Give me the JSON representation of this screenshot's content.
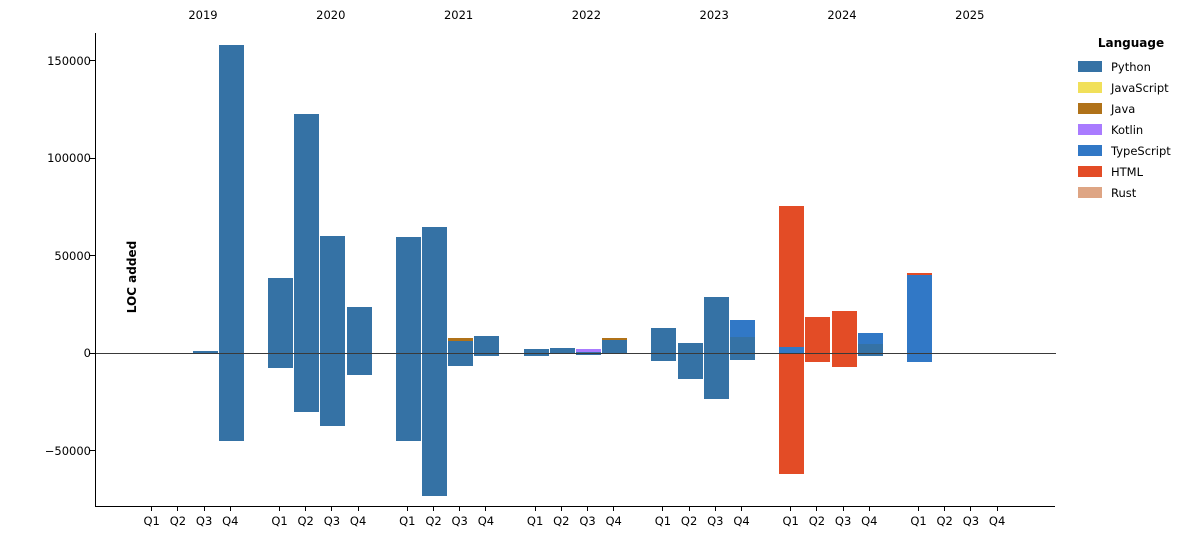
{
  "chart": {
    "ylabel": "LOC added",
    "legend_title": "Language"
  },
  "chart_data": {
    "type": "bar",
    "stacked": true,
    "orientation": "vertical",
    "title": "",
    "xlabel": "",
    "ylabel": "LOC added",
    "grid": false,
    "legend_title": "Language",
    "legend_position": "outside-upper-right",
    "ylim": [
      -78000,
      163000
    ],
    "yticks": [
      {
        "v": 150000,
        "label": "150000"
      },
      {
        "v": 100000,
        "label": "100000"
      },
      {
        "v": 50000,
        "label": "50000"
      },
      {
        "v": 0,
        "label": "0"
      },
      {
        "v": -50000,
        "label": "−50000"
      }
    ],
    "years": [
      "2019",
      "2020",
      "2021",
      "2022",
      "2023",
      "2024",
      "2025"
    ],
    "quarters": [
      "Q1",
      "Q2",
      "Q3",
      "Q4"
    ],
    "languages": [
      {
        "name": "Python",
        "color": "#3572A5"
      },
      {
        "name": "JavaScript",
        "color": "#F1E05A"
      },
      {
        "name": "Java",
        "color": "#B07219"
      },
      {
        "name": "Kotlin",
        "color": "#A97BFF"
      },
      {
        "name": "TypeScript",
        "color": "#3178C6"
      },
      {
        "name": "HTML",
        "color": "#E34C26"
      },
      {
        "name": "Rust",
        "color": "#DEA584"
      }
    ],
    "values": [
      {
        "year": "2019",
        "bars": [
          {
            "q": "Q1",
            "pos": [],
            "neg": []
          },
          {
            "q": "Q2",
            "pos": [],
            "neg": []
          },
          {
            "q": "Q3",
            "pos": [
              {
                "lang": "Python",
                "v": 1300
              }
            ],
            "neg": []
          },
          {
            "q": "Q4",
            "pos": [
              {
                "lang": "Python",
                "v": 158000
              }
            ],
            "neg": [
              {
                "lang": "Python",
                "v": 45000
              }
            ]
          }
        ]
      },
      {
        "year": "2020",
        "bars": [
          {
            "q": "Q1",
            "pos": [
              {
                "lang": "Python",
                "v": 38500
              }
            ],
            "neg": [
              {
                "lang": "Python",
                "v": 7500
              }
            ]
          },
          {
            "q": "Q2",
            "pos": [
              {
                "lang": "Python",
                "v": 122500
              }
            ],
            "neg": [
              {
                "lang": "Python",
                "v": 30000
              }
            ]
          },
          {
            "q": "Q3",
            "pos": [
              {
                "lang": "Python",
                "v": 60000
              }
            ],
            "neg": [
              {
                "lang": "Python",
                "v": 37500
              }
            ]
          },
          {
            "q": "Q4",
            "pos": [
              {
                "lang": "Python",
                "v": 23500
              }
            ],
            "neg": [
              {
                "lang": "Python",
                "v": 11000
              }
            ]
          }
        ]
      },
      {
        "year": "2021",
        "bars": [
          {
            "q": "Q1",
            "pos": [
              {
                "lang": "Python",
                "v": 59500
              }
            ],
            "neg": [
              {
                "lang": "Python",
                "v": 45000
              }
            ]
          },
          {
            "q": "Q2",
            "pos": [
              {
                "lang": "Python",
                "v": 64500
              }
            ],
            "neg": [
              {
                "lang": "Python",
                "v": 73000
              }
            ]
          },
          {
            "q": "Q3",
            "pos": [
              {
                "lang": "Python",
                "v": 6500
              },
              {
                "lang": "Java",
                "v": 1300
              }
            ],
            "neg": [
              {
                "lang": "Python",
                "v": 6500
              }
            ]
          },
          {
            "q": "Q4",
            "pos": [
              {
                "lang": "Python",
                "v": 8700
              }
            ],
            "neg": [
              {
                "lang": "Python",
                "v": 1500
              }
            ]
          }
        ]
      },
      {
        "year": "2022",
        "bars": [
          {
            "q": "Q1",
            "pos": [
              {
                "lang": "Python",
                "v": 2300
              }
            ],
            "neg": [
              {
                "lang": "Python",
                "v": 1200
              }
            ]
          },
          {
            "q": "Q2",
            "pos": [
              {
                "lang": "Python",
                "v": 2500
              }
            ],
            "neg": []
          },
          {
            "q": "Q3",
            "pos": [
              {
                "lang": "Python",
                "v": 800
              },
              {
                "lang": "Kotlin",
                "v": 1200
              }
            ],
            "neg": [
              {
                "lang": "Python",
                "v": 800
              }
            ]
          },
          {
            "q": "Q4",
            "pos": [
              {
                "lang": "Python",
                "v": 7000
              },
              {
                "lang": "Java",
                "v": 800
              }
            ],
            "neg": []
          }
        ]
      },
      {
        "year": "2023",
        "bars": [
          {
            "q": "Q1",
            "pos": [
              {
                "lang": "Python",
                "v": 13000
              }
            ],
            "neg": [
              {
                "lang": "Python",
                "v": 4200
              }
            ]
          },
          {
            "q": "Q2",
            "pos": [
              {
                "lang": "Python",
                "v": 5500
              }
            ],
            "neg": [
              {
                "lang": "Python",
                "v": 13000
              }
            ]
          },
          {
            "q": "Q3",
            "pos": [
              {
                "lang": "Python",
                "v": 28700
              }
            ],
            "neg": [
              {
                "lang": "Python",
                "v": 23200
              }
            ]
          },
          {
            "q": "Q4",
            "pos": [
              {
                "lang": "Python",
                "v": 8500
              },
              {
                "lang": "TypeScript",
                "v": 8700
              }
            ],
            "neg": [
              {
                "lang": "Python",
                "v": 3400
              }
            ]
          }
        ]
      },
      {
        "year": "2024",
        "bars": [
          {
            "q": "Q1",
            "pos": [
              {
                "lang": "TypeScript",
                "v": 3000
              },
              {
                "lang": "HTML",
                "v": 72700
              }
            ],
            "neg": [
              {
                "lang": "HTML",
                "v": 62000
              }
            ]
          },
          {
            "q": "Q2",
            "pos": [
              {
                "lang": "HTML",
                "v": 18400
              }
            ],
            "neg": [
              {
                "lang": "HTML",
                "v": 4600
              }
            ]
          },
          {
            "q": "Q3",
            "pos": [
              {
                "lang": "HTML",
                "v": 21800
              }
            ],
            "neg": [
              {
                "lang": "HTML",
                "v": 6800
              }
            ]
          },
          {
            "q": "Q4",
            "pos": [
              {
                "lang": "Python",
                "v": 4600
              },
              {
                "lang": "TypeScript",
                "v": 5700
              }
            ],
            "neg": [
              {
                "lang": "Python",
                "v": 1400
              }
            ]
          }
        ]
      },
      {
        "year": "2025",
        "bars": [
          {
            "q": "Q1",
            "pos": [
              {
                "lang": "TypeScript",
                "v": 40000
              },
              {
                "lang": "HTML",
                "v": 900
              }
            ],
            "neg": [
              {
                "lang": "TypeScript",
                "v": 4300
              }
            ]
          },
          {
            "q": "Q2",
            "pos": [],
            "neg": []
          },
          {
            "q": "Q3",
            "pos": [],
            "neg": []
          },
          {
            "q": "Q4",
            "pos": [],
            "neg": []
          }
        ]
      }
    ]
  }
}
